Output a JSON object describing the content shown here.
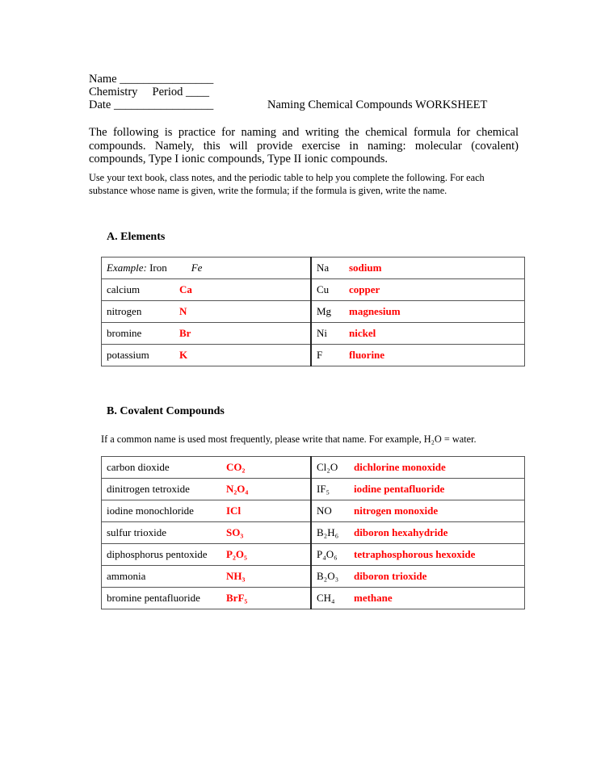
{
  "header": {
    "name_label": "Name ________________",
    "chem_label": "Chemistry     Period ____",
    "date_label": "Date _________________",
    "title": "Naming Chemical Compounds WORKSHEET"
  },
  "intro": "The following is practice for naming and writing the chemical formula for chemical compounds. Namely, this will provide exercise in naming: molecular (covalent) compounds, Type I ionic compounds, Type II ionic compounds.",
  "instructions": "Use your text book, class notes, and the periodic table to help you complete the following.  For each substance whose name is given, write the formula; if the formula is given, write the name.",
  "colors": {
    "answer": "#ff0000"
  },
  "sectionA": {
    "heading": "A.  Elements",
    "example_label": "Example:",
    "rows": [
      {
        "name": "Iron",
        "formula": "Fe",
        "symbol": "Na",
        "answer": "sodium"
      },
      {
        "name": "calcium",
        "formula": "Ca",
        "symbol": "Cu",
        "answer": "copper"
      },
      {
        "name": "nitrogen",
        "formula": "N",
        "symbol": "Mg",
        "answer": "magnesium"
      },
      {
        "name": "bromine",
        "formula": "Br",
        "symbol": "Ni",
        "answer": "nickel"
      },
      {
        "name": "potassium",
        "formula": "K",
        "symbol": "F",
        "answer": "fluorine"
      }
    ]
  },
  "sectionB": {
    "heading": "B.  Covalent Compounds",
    "note": "If a common name is used most frequently, please write that name.  For example, H₂O = water.",
    "rows": [
      {
        "name": "carbon dioxide",
        "formula": "CO₂",
        "symbol": "Cl₂O",
        "answer": "dichlorine monoxide"
      },
      {
        "name": "dinitrogen tetroxide",
        "formula": "N₂O₄",
        "symbol": "IF₅",
        "answer": "iodine pentafluoride"
      },
      {
        "name": "iodine monochloride",
        "formula": "ICl",
        "symbol": "NO",
        "answer": "nitrogen monoxide"
      },
      {
        "name": "sulfur trioxide",
        "formula": "SO₃",
        "symbol": "B₂H₆",
        "answer": "diboron hexahydride"
      },
      {
        "name": "diphosphorus pentoxide",
        "formula": "P₂O₅",
        "symbol": "P₄O₆",
        "answer": "tetraphosphorous hexoxide"
      },
      {
        "name": "ammonia",
        "formula": "NH₃",
        "symbol": "B₂O₃",
        "answer": "diboron trioxide"
      },
      {
        "name": "bromine pentafluoride",
        "formula": "BrF₅",
        "symbol": "CH₄",
        "answer": "methane"
      }
    ]
  }
}
